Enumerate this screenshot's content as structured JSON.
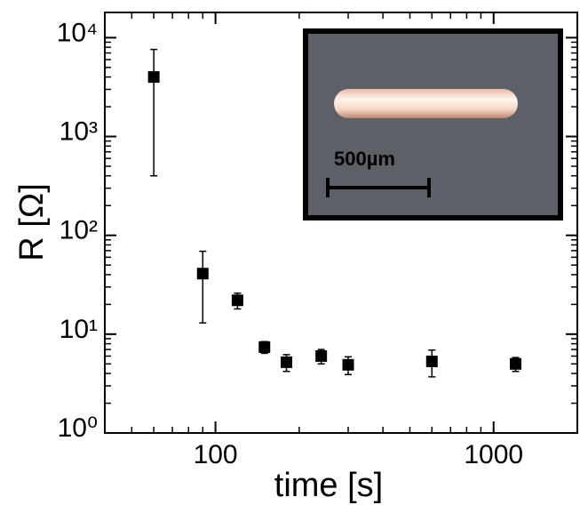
{
  "chart_data": {
    "type": "scatter",
    "xlabel": "time [s]",
    "ylabel": "R [Ω]",
    "x": [
      60,
      90,
      120,
      150,
      180,
      240,
      300,
      600,
      1200
    ],
    "values": [
      4000,
      41,
      22,
      7.4,
      5.2,
      6.0,
      4.9,
      5.3,
      5.0
    ],
    "errors": [
      3600,
      28,
      4,
      1,
      1,
      1,
      1,
      1.6,
      0.8
    ],
    "color": "#000000",
    "log_x": true,
    "log_y": true,
    "xlim": [
      40,
      2000
    ],
    "xticks": [
      100,
      1000
    ],
    "ylim": [
      1,
      18000
    ],
    "yticks": [
      {
        "value": 1,
        "label": "10⁰"
      },
      {
        "value": 10,
        "label": "10¹"
      },
      {
        "value": 100,
        "label": "10²"
      },
      {
        "value": 1000,
        "label": "10³"
      },
      {
        "value": 10000,
        "label": "10⁴"
      }
    ],
    "annotations": [
      "500µm"
    ]
  }
}
